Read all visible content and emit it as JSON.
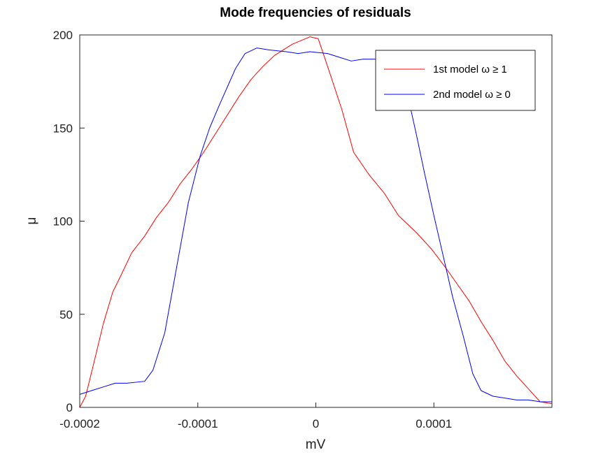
{
  "chart_data": {
    "type": "line",
    "title": "Mode frequencies of residuals",
    "xlabel": "mV",
    "ylabel": "μ",
    "xlim": [
      -0.0002,
      0.0002
    ],
    "ylim": [
      0,
      200
    ],
    "x_ticks": [
      -0.0002,
      -0.0001,
      0,
      0.0001
    ],
    "x_tick_labels": [
      "-0.0002",
      "-0.0001",
      "0",
      "0.0001"
    ],
    "y_ticks": [
      0,
      50,
      100,
      150,
      200
    ],
    "y_tick_labels": [
      "0",
      "50",
      "100",
      "150",
      "200"
    ],
    "grid": false,
    "legend_position": "top-right",
    "series": [
      {
        "name": "1st model ω ≥ 1",
        "color": "#ff0000",
        "points": [
          [
            -0.0002,
            0
          ],
          [
            -0.000195,
            6
          ],
          [
            -0.000188,
            24
          ],
          [
            -0.00018,
            45
          ],
          [
            -0.000172,
            62
          ],
          [
            -0.000165,
            71
          ],
          [
            -0.000156,
            83
          ],
          [
            -0.000145,
            92
          ],
          [
            -0.000135,
            102
          ],
          [
            -0.000125,
            110
          ],
          [
            -0.000115,
            120
          ],
          [
            -0.000105,
            128
          ],
          [
            -9.5e-05,
            137
          ],
          [
            -8.5e-05,
            147
          ],
          [
            -7.5e-05,
            157
          ],
          [
            -6.5e-05,
            167
          ],
          [
            -5.5e-05,
            176
          ],
          [
            -4.5e-05,
            183
          ],
          [
            -3.5e-05,
            189
          ],
          [
            -2e-05,
            195
          ],
          [
            -5e-06,
            199
          ],
          [
            2e-06,
            198
          ],
          [
            1e-05,
            183
          ],
          [
            2.2e-05,
            160
          ],
          [
            3.2e-05,
            137
          ],
          [
            4.5e-05,
            125
          ],
          [
            5.8e-05,
            115
          ],
          [
            7e-05,
            103
          ],
          [
            8.5e-05,
            94
          ],
          [
            9.8e-05,
            85
          ],
          [
            0.00011,
            75
          ],
          [
            0.00012,
            66
          ],
          [
            0.00013,
            57
          ],
          [
            0.00014,
            46
          ],
          [
            0.00015,
            36
          ],
          [
            0.00016,
            25
          ],
          [
            0.00017,
            17
          ],
          [
            0.00018,
            10
          ],
          [
            0.00019,
            3
          ],
          [
            0.0002,
            2
          ]
        ]
      },
      {
        "name": "2nd model ω ≥ 0",
        "color": "#0000ff",
        "points": [
          [
            -0.0002,
            7
          ],
          [
            -0.00019,
            9
          ],
          [
            -0.00018,
            11
          ],
          [
            -0.00017,
            13
          ],
          [
            -0.00016,
            13
          ],
          [
            -0.000145,
            14
          ],
          [
            -0.000138,
            20
          ],
          [
            -0.000128,
            40
          ],
          [
            -0.000118,
            75
          ],
          [
            -0.000108,
            110
          ],
          [
            -9.8e-05,
            135
          ],
          [
            -9e-05,
            150
          ],
          [
            -8.2e-05,
            162
          ],
          [
            -7.5e-05,
            172
          ],
          [
            -6.8e-05,
            182
          ],
          [
            -6e-05,
            190
          ],
          [
            -5e-05,
            193
          ],
          [
            -4e-05,
            192
          ],
          [
            -2.5e-05,
            191
          ],
          [
            -1.5e-05,
            190
          ],
          [
            -5e-06,
            191
          ],
          [
            1e-05,
            190
          ],
          [
            2e-05,
            188
          ],
          [
            3e-05,
            186
          ],
          [
            4e-05,
            187
          ],
          [
            5.5e-05,
            187
          ],
          [
            6.5e-05,
            186
          ],
          [
            7e-05,
            181
          ],
          [
            7.8e-05,
            167
          ],
          [
            8.5e-05,
            147
          ],
          [
            9.2e-05,
            126
          ],
          [
            0.0001,
            103
          ],
          [
            0.000108,
            81
          ],
          [
            0.000116,
            59
          ],
          [
            0.000125,
            38
          ],
          [
            0.000133,
            18
          ],
          [
            0.00014,
            9
          ],
          [
            0.00015,
            6
          ],
          [
            0.00016,
            5
          ],
          [
            0.00017,
            4
          ],
          [
            0.00018,
            4
          ],
          [
            0.00019,
            3
          ],
          [
            0.0002,
            3
          ]
        ]
      }
    ]
  }
}
